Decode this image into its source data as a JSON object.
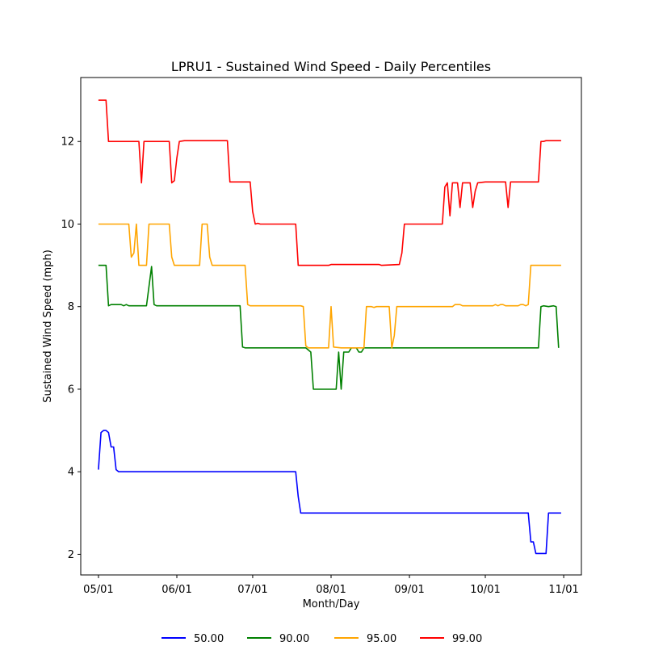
{
  "chart_data": {
    "type": "line",
    "title": "LPRU1 - Sustained Wind Speed - Daily Percentiles",
    "xlabel": "Month/Day",
    "ylabel": "Sustained Wind Speed (mph)",
    "x_ticks": [
      {
        "label": "05/01",
        "date": "05/01"
      },
      {
        "label": "06/01",
        "date": "06/01"
      },
      {
        "label": "07/01",
        "date": "07/01"
      },
      {
        "label": "08/01",
        "date": "08/01"
      },
      {
        "label": "09/01",
        "date": "09/01"
      },
      {
        "label": "10/01",
        "date": "10/01"
      },
      {
        "label": "11/01",
        "date": "11/01"
      }
    ],
    "y_ticks": [
      2,
      4,
      6,
      8,
      10,
      12
    ],
    "xlim": [
      "04/24",
      "11/08"
    ],
    "ylim": [
      1.5,
      13.55
    ],
    "grid": false,
    "legend_position": "bottom",
    "series": [
      {
        "name": "50.00",
        "color": "#0000ff",
        "points": [
          [
            "05/01",
            4.05
          ],
          [
            "05/02",
            4.95
          ],
          [
            "05/03",
            5.0
          ],
          [
            "05/04",
            5.0
          ],
          [
            "05/05",
            4.95
          ],
          [
            "05/06",
            4.6
          ],
          [
            "05/07",
            4.6
          ],
          [
            "05/08",
            4.05
          ],
          [
            "05/09",
            4.0
          ],
          [
            "05/31",
            4.0
          ],
          [
            "06/30",
            4.0
          ],
          [
            "07/18",
            4.0
          ],
          [
            "07/19",
            3.4
          ],
          [
            "07/20",
            3.0
          ],
          [
            "08/31",
            3.0
          ],
          [
            "09/30",
            3.0
          ],
          [
            "10/18",
            3.0
          ],
          [
            "10/19",
            2.3
          ],
          [
            "10/20",
            2.3
          ],
          [
            "10/21",
            2.02
          ],
          [
            "10/25",
            2.02
          ],
          [
            "10/26",
            3.0
          ],
          [
            "10/31",
            3.0
          ]
        ]
      },
      {
        "name": "90.00",
        "color": "#008000",
        "points": [
          [
            "05/01",
            9.0
          ],
          [
            "05/04",
            9.0
          ],
          [
            "05/05",
            8.02
          ],
          [
            "05/06",
            8.05
          ],
          [
            "05/10",
            8.05
          ],
          [
            "05/11",
            8.02
          ],
          [
            "05/12",
            8.05
          ],
          [
            "05/13",
            8.02
          ],
          [
            "05/20",
            8.02
          ],
          [
            "05/22",
            8.97
          ],
          [
            "05/23",
            8.05
          ],
          [
            "05/24",
            8.02
          ],
          [
            "06/26",
            8.02
          ],
          [
            "06/27",
            7.02
          ],
          [
            "06/28",
            7.0
          ],
          [
            "07/22",
            7.0
          ],
          [
            "07/24",
            6.9
          ],
          [
            "07/25",
            6.0
          ],
          [
            "07/31",
            6.0
          ],
          [
            "08/03",
            6.0
          ],
          [
            "08/04",
            6.9
          ],
          [
            "08/05",
            6.0
          ],
          [
            "08/06",
            6.9
          ],
          [
            "08/08",
            6.9
          ],
          [
            "08/09",
            7.0
          ],
          [
            "08/11",
            7.0
          ],
          [
            "08/12",
            6.9
          ],
          [
            "08/13",
            6.9
          ],
          [
            "08/14",
            7.0
          ],
          [
            "09/01",
            7.0
          ],
          [
            "10/01",
            7.0
          ],
          [
            "10/22",
            7.0
          ],
          [
            "10/23",
            8.0
          ],
          [
            "10/24",
            8.02
          ],
          [
            "10/26",
            8.0
          ],
          [
            "10/28",
            8.02
          ],
          [
            "10/29",
            8.0
          ],
          [
            "10/30",
            7.0
          ]
        ]
      },
      {
        "name": "95.00",
        "color": "#ffa500",
        "points": [
          [
            "05/01",
            10.0
          ],
          [
            "05/13",
            10.0
          ],
          [
            "05/14",
            9.2
          ],
          [
            "05/15",
            9.3
          ],
          [
            "05/16",
            10.0
          ],
          [
            "05/17",
            9.0
          ],
          [
            "05/20",
            9.0
          ],
          [
            "05/21",
            10.0
          ],
          [
            "05/29",
            10.0
          ],
          [
            "05/30",
            9.2
          ],
          [
            "05/31",
            9.0
          ],
          [
            "06/10",
            9.0
          ],
          [
            "06/11",
            10.0
          ],
          [
            "06/13",
            10.0
          ],
          [
            "06/14",
            9.2
          ],
          [
            "06/15",
            9.0
          ],
          [
            "06/28",
            9.0
          ],
          [
            "06/29",
            8.05
          ],
          [
            "06/30",
            8.02
          ],
          [
            "07/20",
            8.02
          ],
          [
            "07/21",
            8.0
          ],
          [
            "07/22",
            7.05
          ],
          [
            "07/23",
            7.0
          ],
          [
            "07/31",
            7.0
          ],
          [
            "08/01",
            8.0
          ],
          [
            "08/02",
            7.02
          ],
          [
            "08/05",
            7.0
          ],
          [
            "08/14",
            7.0
          ],
          [
            "08/15",
            8.0
          ],
          [
            "08/17",
            8.0
          ],
          [
            "08/18",
            7.98
          ],
          [
            "08/19",
            8.0
          ],
          [
            "08/24",
            8.0
          ],
          [
            "08/25",
            7.0
          ],
          [
            "08/26",
            7.3
          ],
          [
            "08/27",
            8.0
          ],
          [
            "09/01",
            8.0
          ],
          [
            "09/18",
            8.0
          ],
          [
            "09/19",
            8.05
          ],
          [
            "09/21",
            8.05
          ],
          [
            "09/22",
            8.02
          ],
          [
            "10/01",
            8.02
          ],
          [
            "10/04",
            8.02
          ],
          [
            "10/05",
            8.05
          ],
          [
            "10/06",
            8.02
          ],
          [
            "10/07",
            8.05
          ],
          [
            "10/08",
            8.05
          ],
          [
            "10/09",
            8.02
          ],
          [
            "10/14",
            8.02
          ],
          [
            "10/15",
            8.05
          ],
          [
            "10/16",
            8.05
          ],
          [
            "10/17",
            8.02
          ],
          [
            "10/18",
            8.05
          ],
          [
            "10/19",
            9.0
          ],
          [
            "10/31",
            9.0
          ]
        ]
      },
      {
        "name": "99.00",
        "color": "#ff0000",
        "points": [
          [
            "05/01",
            13.0
          ],
          [
            "05/04",
            13.0
          ],
          [
            "05/05",
            12.0
          ],
          [
            "05/17",
            12.0
          ],
          [
            "05/18",
            11.0
          ],
          [
            "05/19",
            12.0
          ],
          [
            "05/29",
            12.0
          ],
          [
            "05/30",
            11.0
          ],
          [
            "05/31",
            11.05
          ],
          [
            "06/01",
            11.6
          ],
          [
            "06/02",
            12.0
          ],
          [
            "06/04",
            12.02
          ],
          [
            "06/21",
            12.02
          ],
          [
            "06/22",
            11.02
          ],
          [
            "06/30",
            11.02
          ],
          [
            "07/01",
            10.3
          ],
          [
            "07/02",
            10.0
          ],
          [
            "07/03",
            10.02
          ],
          [
            "07/04",
            10.0
          ],
          [
            "07/18",
            10.0
          ],
          [
            "07/19",
            9.0
          ],
          [
            "07/31",
            9.0
          ],
          [
            "08/01",
            9.02
          ],
          [
            "08/20",
            9.02
          ],
          [
            "08/21",
            9.0
          ],
          [
            "08/28",
            9.02
          ],
          [
            "08/29",
            9.3
          ],
          [
            "08/30",
            10.0
          ],
          [
            "09/14",
            10.0
          ],
          [
            "09/15",
            10.9
          ],
          [
            "09/16",
            11.0
          ],
          [
            "09/17",
            10.2
          ],
          [
            "09/18",
            11.0
          ],
          [
            "09/20",
            11.0
          ],
          [
            "09/21",
            10.4
          ],
          [
            "09/22",
            11.0
          ],
          [
            "09/25",
            11.0
          ],
          [
            "09/26",
            10.4
          ],
          [
            "09/27",
            10.8
          ],
          [
            "09/28",
            11.0
          ],
          [
            "10/01",
            11.02
          ],
          [
            "10/09",
            11.02
          ],
          [
            "10/10",
            10.4
          ],
          [
            "10/11",
            11.02
          ],
          [
            "10/22",
            11.02
          ],
          [
            "10/23",
            12.0
          ],
          [
            "10/24",
            12.0
          ],
          [
            "10/25",
            12.02
          ],
          [
            "10/31",
            12.02
          ]
        ]
      }
    ]
  }
}
